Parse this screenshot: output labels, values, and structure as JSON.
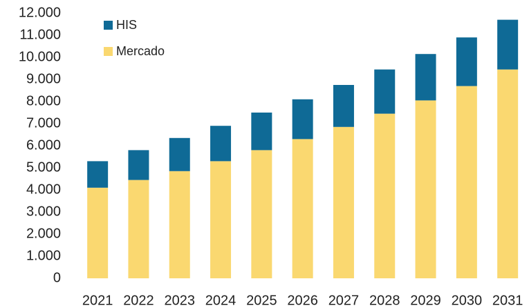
{
  "chart_data": {
    "type": "stacked_bar",
    "categories": [
      "2021",
      "2022",
      "2023",
      "2024",
      "2025",
      "2026",
      "2027",
      "2028",
      "2029",
      "2030",
      "2031"
    ],
    "series": [
      {
        "name": "Mercado",
        "color": "#fad870",
        "values": [
          4100,
          4450,
          4850,
          5300,
          5800,
          6300,
          6850,
          7450,
          8050,
          8700,
          9450
        ]
      },
      {
        "name": "HIS",
        "color": "#0f6a96",
        "values": [
          1200,
          1350,
          1500,
          1600,
          1700,
          1800,
          1900,
          2000,
          2100,
          2200,
          2250
        ]
      }
    ],
    "ylim": [
      0,
      12000
    ],
    "yticks": [
      0,
      {
        "value": 1000,
        "label": "1.000"
      },
      {
        "value": 2000,
        "label": "2.000"
      },
      {
        "value": 3000,
        "label": "3.000"
      },
      {
        "value": 4000,
        "label": "4.000"
      },
      {
        "value": 5000,
        "label": "5.000"
      },
      {
        "value": 6000,
        "label": "6.000"
      },
      {
        "value": 7000,
        "label": "7.000"
      },
      {
        "value": 8000,
        "label": "8.000"
      },
      {
        "value": 9000,
        "label": "9.000"
      },
      {
        "value": 10000,
        "label": "10.000"
      },
      {
        "value": 11000,
        "label": "11.000"
      },
      {
        "value": 12000,
        "label": "12.000"
      }
    ],
    "legend": "upper-left",
    "grid": false
  }
}
